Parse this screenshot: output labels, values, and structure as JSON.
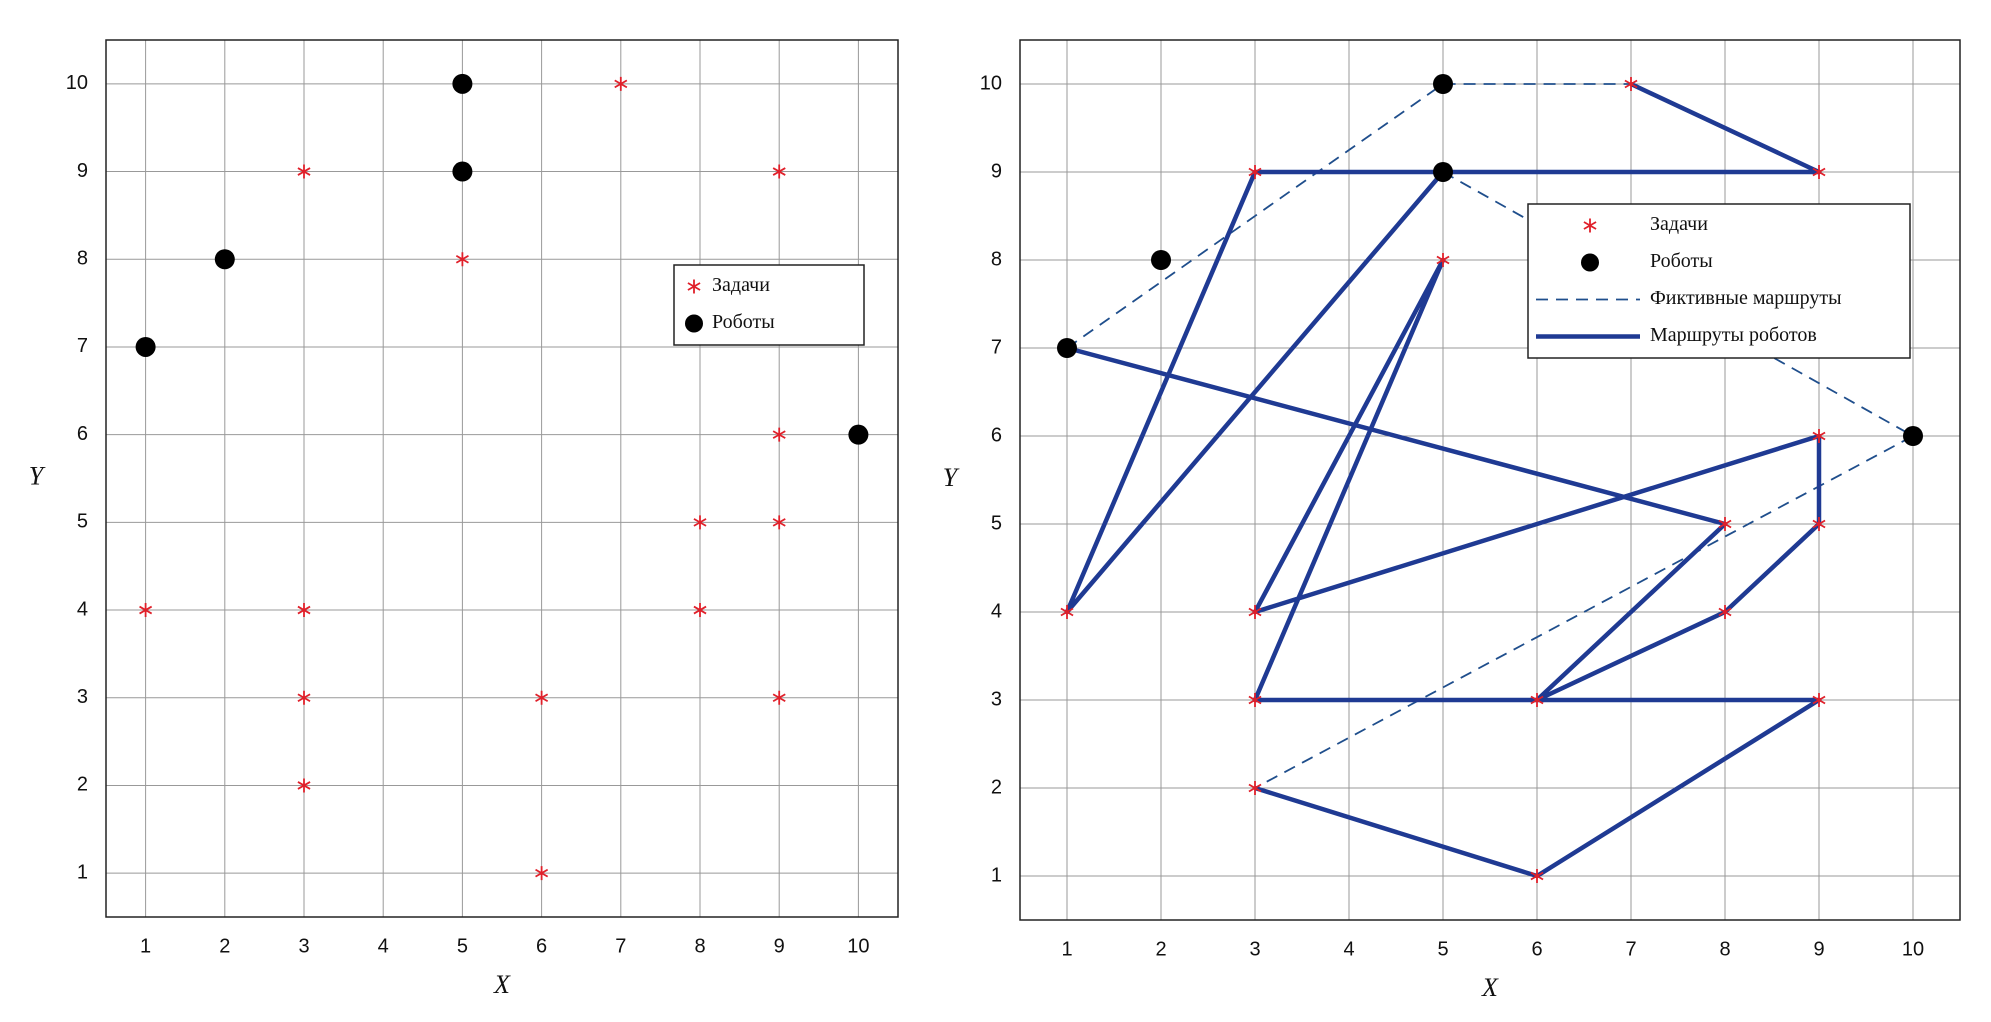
{
  "chart_data": [
    {
      "type": "scatter",
      "xlabel": "X",
      "ylabel": "Y",
      "xlim": [
        0.5,
        10.5
      ],
      "ylim": [
        0.5,
        10.5
      ],
      "xticks": [
        1,
        2,
        3,
        4,
        5,
        6,
        7,
        8,
        9,
        10
      ],
      "yticks": [
        1,
        2,
        3,
        4,
        5,
        6,
        7,
        8,
        9,
        10
      ],
      "grid": true,
      "legend": "center right",
      "series": [
        {
          "name": "Задачи",
          "color": "#e0202a",
          "marker": "asterisk",
          "x": [
            7,
            3,
            9,
            5,
            9,
            8,
            9,
            1,
            3,
            8,
            3,
            6,
            9,
            3,
            6
          ],
          "y": [
            10,
            9,
            9,
            8,
            6,
            5,
            5,
            4,
            4,
            4,
            3,
            3,
            3,
            2,
            1
          ]
        },
        {
          "name": "Роботы",
          "color": "#000000",
          "marker": "circle",
          "x": [
            5,
            5,
            2,
            1,
            10
          ],
          "y": [
            10,
            9,
            8,
            7,
            6
          ]
        }
      ]
    },
    {
      "type": "scatter",
      "xlabel": "X",
      "ylabel": "Y",
      "xlim": [
        0.5,
        10.5
      ],
      "ylim": [
        0.5,
        10.5
      ],
      "xticks": [
        1,
        2,
        3,
        4,
        5,
        6,
        7,
        8,
        9,
        10
      ],
      "yticks": [
        1,
        2,
        3,
        4,
        5,
        6,
        7,
        8,
        9,
        10
      ],
      "grid": true,
      "legend": "upper right",
      "series": [
        {
          "name": "Задачи",
          "color": "#e0202a",
          "marker": "asterisk",
          "x": [
            7,
            3,
            9,
            5,
            9,
            8,
            9,
            1,
            3,
            8,
            3,
            6,
            9,
            3,
            6
          ],
          "y": [
            10,
            9,
            9,
            8,
            6,
            5,
            5,
            4,
            4,
            4,
            3,
            3,
            3,
            2,
            1
          ]
        },
        {
          "name": "Роботы",
          "color": "#000000",
          "marker": "circle",
          "x": [
            5,
            5,
            2,
            1,
            10
          ],
          "y": [
            10,
            9,
            8,
            7,
            6
          ]
        },
        {
          "name": "Фиктивные маршруты",
          "color": "#1f4e8c",
          "line": "dashed",
          "x": [
            1,
            5,
            7,
            null,
            5,
            10,
            3
          ],
          "y": [
            7,
            10,
            10,
            null,
            9,
            6,
            2
          ]
        },
        {
          "name": "Маршруты роботов",
          "color": "#1f3a93",
          "line": "solid",
          "x": [
            7,
            9,
            3,
            1,
            5,
            null,
            1,
            8,
            6,
            8,
            9,
            9,
            3,
            5,
            3,
            9,
            6,
            3
          ],
          "y": [
            10,
            9,
            9,
            4,
            9,
            null,
            7,
            5,
            3,
            4,
            5,
            6,
            4,
            8,
            3,
            3,
            1,
            2
          ]
        }
      ]
    }
  ]
}
